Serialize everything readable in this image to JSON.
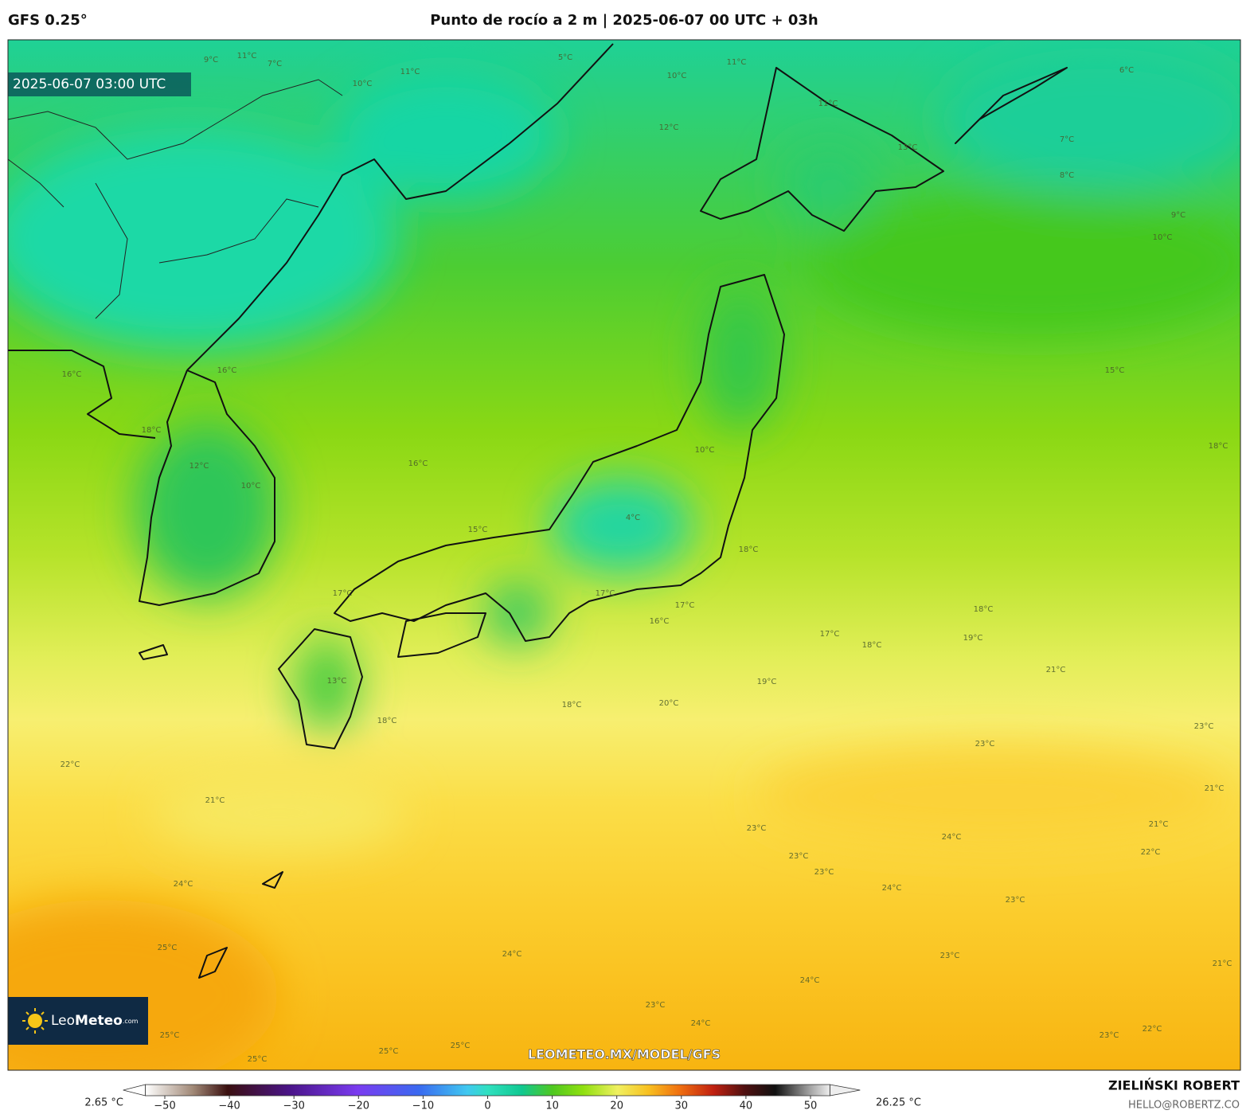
{
  "header": {
    "model": "GFS 0.25°",
    "title": "Punto de rocío a 2 m | 2025-06-07 00 UTC + 03h"
  },
  "map": {
    "timestamp": "2025-06-07 03:00 UTC",
    "watermark": "LEOMETEO.MX/MODEL/GFS",
    "logo": {
      "brand_light": "Leo",
      "brand_bold": "Meteo",
      "suffix": ".com"
    },
    "contour_labels": [
      "9°C",
      "11°C",
      "7°C",
      "10°C",
      "11°C",
      "5°C",
      "10°C",
      "11°C",
      "12°C",
      "11°C",
      "13°C",
      "7°C",
      "8°C",
      "9°C",
      "10°C",
      "6°C",
      "15°C",
      "18°C",
      "16°C",
      "16°C",
      "18°C",
      "12°C",
      "10°C",
      "16°C",
      "15°C",
      "4°C",
      "10°C",
      "17°C",
      "17°C",
      "16°C",
      "17°C",
      "18°C",
      "18°C",
      "19°C",
      "17°C",
      "18°C",
      "21°C",
      "19°C",
      "20°C",
      "18°C",
      "18°C",
      "13°C",
      "22°C",
      "21°C",
      "23°C",
      "23°C",
      "21°C",
      "21°C",
      "22°C",
      "23°C",
      "24°C",
      "23°C",
      "23°C",
      "24°C",
      "23°C",
      "24°C",
      "25°C",
      "24°C",
      "23°C",
      "21°C",
      "24°C",
      "23°C",
      "24°C",
      "22°C",
      "23°C",
      "25°C",
      "25°C",
      "25°C",
      "25°C"
    ]
  },
  "colorbar": {
    "min_label": "2.65 °C",
    "max_label": "26.25 °C",
    "lim": [
      -53,
      53
    ],
    "ticks": [
      {
        "value": -50,
        "label": "−50"
      },
      {
        "value": -40,
        "label": "−40"
      },
      {
        "value": -30,
        "label": "−30"
      },
      {
        "value": -20,
        "label": "−20"
      },
      {
        "value": -10,
        "label": "−10"
      },
      0,
      10,
      20,
      30,
      40,
      50
    ]
  },
  "footer": {
    "author": "ZIELIŃSKI ROBERT",
    "email": "HELLO@ROBERTZ.CO"
  }
}
